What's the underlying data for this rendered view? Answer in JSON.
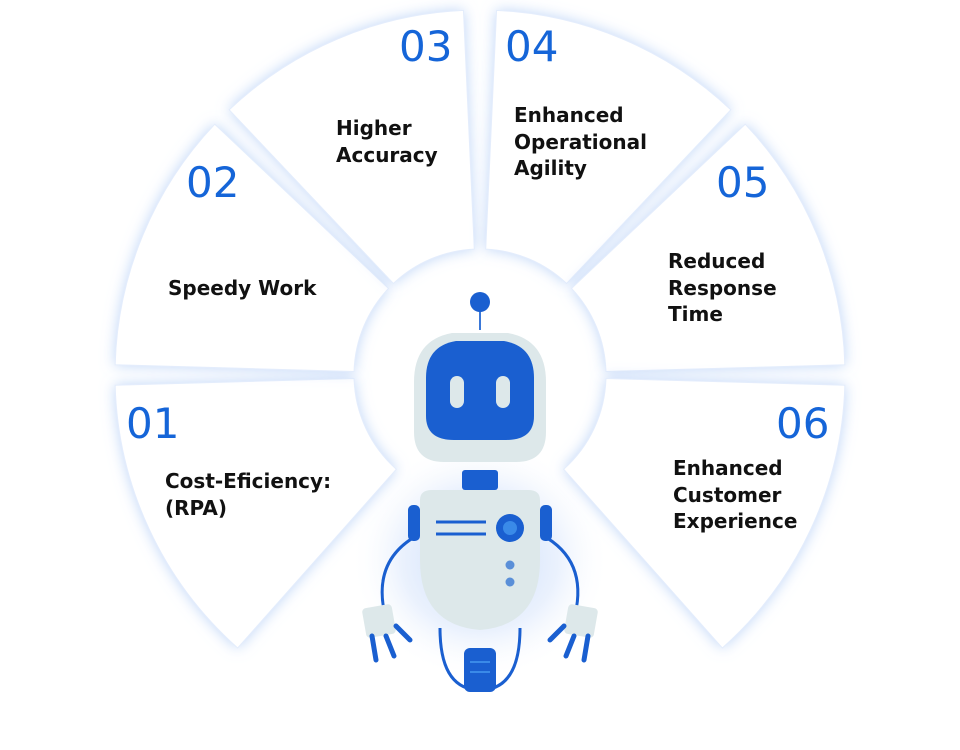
{
  "benefits": [
    {
      "number": "01",
      "label": "Cost-Eficiency:\n(RPA)"
    },
    {
      "number": "02",
      "label": "Speedy Work"
    },
    {
      "number": "03",
      "label": "Higher\nAccuracy"
    },
    {
      "number": "04",
      "label": "Enhanced\nOperational\nAgility"
    },
    {
      "number": "05",
      "label": "Reduced\nResponse\nTime"
    },
    {
      "number": "06",
      "label": "Enhanced\nCustomer\nExperience"
    }
  ],
  "colors": {
    "accent": "#1565d8",
    "petal_fill": "#ffffff",
    "petal_glow": "#cfe0fb",
    "robot_body": "#dde8ea",
    "robot_head": "#1a5fd0",
    "label_text": "#111111"
  },
  "icons": [
    "robot-illustration"
  ]
}
